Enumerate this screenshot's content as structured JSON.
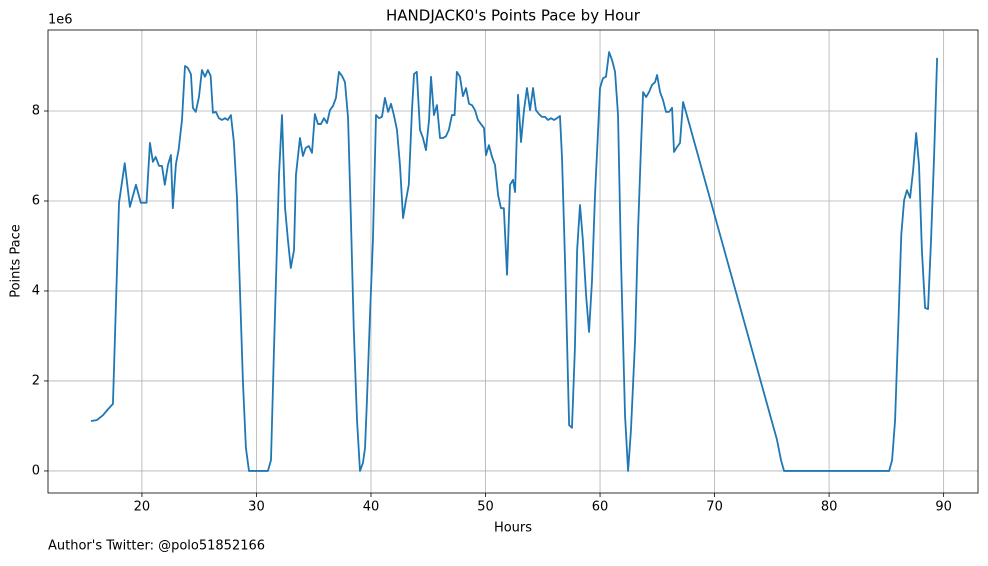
{
  "chart_data": {
    "type": "line",
    "title": "HANDJACK0's Points Pace by Hour",
    "x_label": "Hours",
    "y_label": "Points Pace",
    "y_offset_label": "1e6",
    "color": "#1f77b4",
    "grid": true,
    "xlim": [
      11.8,
      93.0
    ],
    "ylim": [
      -0.49,
      9.8
    ],
    "xticks": [
      20,
      30,
      40,
      50,
      60,
      70,
      80,
      90
    ],
    "yticks": [
      0,
      2,
      4,
      6,
      8
    ],
    "x": [
      15.55,
      16.07,
      16.6,
      17.0,
      17.47,
      18.0,
      18.5,
      18.95,
      19.48,
      19.9,
      20.4,
      20.7,
      20.96,
      21.2,
      21.5,
      21.75,
      22.0,
      22.27,
      22.53,
      22.7,
      22.97,
      23.2,
      23.5,
      23.76,
      24.0,
      24.28,
      24.45,
      24.7,
      24.98,
      25.24,
      25.5,
      25.76,
      26.0,
      26.2,
      26.46,
      26.72,
      26.99,
      27.25,
      27.5,
      27.77,
      28.03,
      28.3,
      28.56,
      28.82,
      29.08,
      29.35,
      31.0,
      31.27,
      31.53,
      31.97,
      32.23,
      32.5,
      32.75,
      33.0,
      33.28,
      33.45,
      33.8,
      34.06,
      34.3,
      34.58,
      34.85,
      35.1,
      35.37,
      35.63,
      35.9,
      36.16,
      36.42,
      36.68,
      36.94,
      37.2,
      37.47,
      37.73,
      38.0,
      38.25,
      38.5,
      38.78,
      39.04,
      39.3,
      39.48,
      39.65,
      39.9,
      40.17,
      40.44,
      40.7,
      40.96,
      41.22,
      41.5,
      41.75,
      42.0,
      42.27,
      42.53,
      42.8,
      43.06,
      43.3,
      43.58,
      43.76,
      44.0,
      44.28,
      44.54,
      44.8,
      45.07,
      45.24,
      45.5,
      45.76,
      46.03,
      46.3,
      46.55,
      46.8,
      47.07,
      47.3,
      47.5,
      47.77,
      48.03,
      48.3,
      48.56,
      48.82,
      49.08,
      49.34,
      49.6,
      49.87,
      50.04,
      50.3,
      50.57,
      50.83,
      51.1,
      51.35,
      51.6,
      51.88,
      52.14,
      52.4,
      52.58,
      52.84,
      53.1,
      53.36,
      53.62,
      53.89,
      54.15,
      54.4,
      54.67,
      54.93,
      55.2,
      55.46,
      55.72,
      55.98,
      56.24,
      56.5,
      56.68,
      56.94,
      57.3,
      57.55,
      57.8,
      58.0,
      58.25,
      58.5,
      58.78,
      59.04,
      59.3,
      59.56,
      59.83,
      60.0,
      60.26,
      60.52,
      60.79,
      61.05,
      61.31,
      61.57,
      61.83,
      62.18,
      62.45,
      62.7,
      63.06,
      63.32,
      63.58,
      63.76,
      64.02,
      64.28,
      64.54,
      64.8,
      64.98,
      65.24,
      65.5,
      65.76,
      66.03,
      66.29,
      66.46,
      66.72,
      66.98,
      67.25,
      67.5,
      75.45,
      75.8,
      76.07,
      85.24,
      85.5,
      85.76,
      86.03,
      86.3,
      86.55,
      86.8,
      87.07,
      87.34,
      87.6,
      87.85,
      88.1,
      88.38,
      88.64,
      88.9,
      89.17,
      89.43
    ],
    "values": [
      1.11,
      1.13,
      1.24,
      1.36,
      1.49,
      5.96,
      6.84,
      5.87,
      6.36,
      5.96,
      5.96,
      7.29,
      6.87,
      6.98,
      6.78,
      6.78,
      6.36,
      6.8,
      7.02,
      5.84,
      6.82,
      7.13,
      7.8,
      9.0,
      8.96,
      8.82,
      8.07,
      7.98,
      8.31,
      8.91,
      8.76,
      8.91,
      8.78,
      7.96,
      7.98,
      7.84,
      7.8,
      7.84,
      7.8,
      7.91,
      7.31,
      6.07,
      4.02,
      1.98,
      0.51,
      0,
      0,
      0.24,
      2.69,
      6.58,
      7.91,
      5.84,
      5.13,
      4.51,
      4.91,
      6.58,
      7.4,
      7.0,
      7.18,
      7.22,
      7.07,
      7.93,
      7.71,
      7.71,
      7.84,
      7.73,
      8.02,
      8.11,
      8.29,
      8.87,
      8.78,
      8.64,
      7.84,
      5.58,
      3.13,
      1.13,
      0,
      0.18,
      0.51,
      1.58,
      3.36,
      5.13,
      7.91,
      7.84,
      7.87,
      8.29,
      7.98,
      8.16,
      7.91,
      7.58,
      6.8,
      5.62,
      6.02,
      6.36,
      8.02,
      8.82,
      8.87,
      7.58,
      7.4,
      7.13,
      7.8,
      8.76,
      7.91,
      8.13,
      7.4,
      7.4,
      7.44,
      7.58,
      7.91,
      7.91,
      8.87,
      8.76,
      8.33,
      8.51,
      8.16,
      8.13,
      8.02,
      7.8,
      7.71,
      7.62,
      7.02,
      7.24,
      6.98,
      6.8,
      6.13,
      5.84,
      5.84,
      4.36,
      6.36,
      6.47,
      6.2,
      8.36,
      7.31,
      8.02,
      8.51,
      8.02,
      8.51,
      8.02,
      7.93,
      7.87,
      7.87,
      7.8,
      7.84,
      7.8,
      7.84,
      7.89,
      6.96,
      4.69,
      1.02,
      0.96,
      2.69,
      4.91,
      5.91,
      5.13,
      3.91,
      3.09,
      4.24,
      6.13,
      7.58,
      8.51,
      8.73,
      8.76,
      9.31,
      9.13,
      8.87,
      7.91,
      4.69,
      1.24,
      0,
      0.91,
      2.91,
      5.36,
      7.24,
      8.42,
      8.31,
      8.42,
      8.58,
      8.64,
      8.8,
      8.42,
      8.24,
      7.98,
      7.98,
      8.07,
      7.09,
      7.2,
      7.29,
      8.2,
      7.98,
      0.69,
      0.24,
      0,
      0,
      0.24,
      1.13,
      3.13,
      5.24,
      6.02,
      6.24,
      6.07,
      6.69,
      7.51,
      6.8,
      4.91,
      3.62,
      3.6,
      5.13,
      7.02,
      9.18
    ]
  },
  "footer": "Author's Twitter: @polo51852166"
}
